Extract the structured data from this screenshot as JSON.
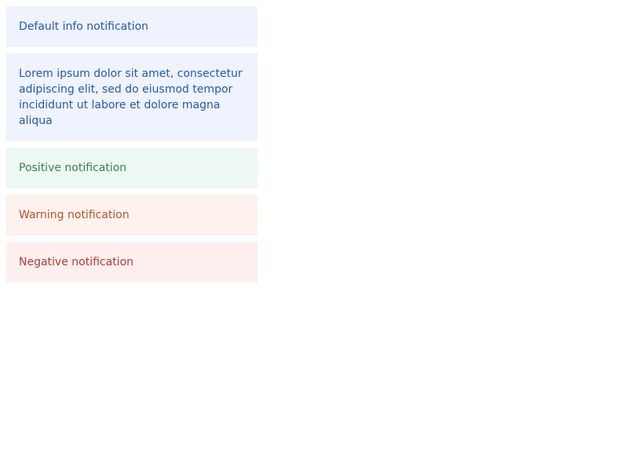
{
  "notifications": [
    {
      "kind": "info",
      "text": "Default info notification"
    },
    {
      "kind": "info",
      "text": "Lorem ipsum dolor sit amet, consectetur adipiscing elit, sed do eiusmod tempor incididunt ut labore et dolore magna aliqua"
    },
    {
      "kind": "positive",
      "text": "Positive notification"
    },
    {
      "kind": "warning",
      "text": "Warning notification"
    },
    {
      "kind": "negative",
      "text": "Negative notification"
    }
  ],
  "colors": {
    "info_bg": "#eef3fe",
    "info_text": "#2a56b0",
    "positive_bg": "#eef8f2",
    "positive_text": "#33854f",
    "warning_bg": "#fdf2ee",
    "warning_text": "#b8542a",
    "negative_bg": "#fdefee",
    "negative_text": "#b23a32"
  }
}
